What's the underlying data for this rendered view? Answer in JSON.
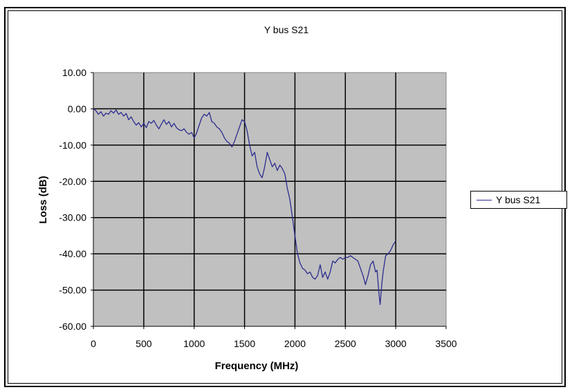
{
  "chart_data": {
    "type": "line",
    "title": "Y bus S21",
    "xlabel": "Frequency (MHz)",
    "ylabel": "Loss (dB)",
    "xlim": [
      0,
      3500
    ],
    "ylim": [
      -60,
      10
    ],
    "x_ticks": [
      "0",
      "500",
      "1000",
      "1500",
      "2000",
      "2500",
      "3000",
      "3500"
    ],
    "y_ticks": [
      "10.00",
      "0.00",
      "-10.00",
      "-20.00",
      "-30.00",
      "-40.00",
      "-50.00",
      "-60.00"
    ],
    "grid": true,
    "legend_position": "right",
    "plot_background": "#C0C0C0",
    "series": [
      {
        "name": "Y bus S21",
        "color": "#2B2B8F",
        "points": [
          [
            0,
            0.0
          ],
          [
            25,
            -0.5
          ],
          [
            50,
            -1.5
          ],
          [
            75,
            -0.8
          ],
          [
            100,
            -2.0
          ],
          [
            125,
            -1.2
          ],
          [
            150,
            -1.5
          ],
          [
            175,
            -0.5
          ],
          [
            200,
            -1.2
          ],
          [
            225,
            -0.3
          ],
          [
            250,
            -1.5
          ],
          [
            275,
            -1.0
          ],
          [
            300,
            -2.0
          ],
          [
            325,
            -1.3
          ],
          [
            350,
            -3.0
          ],
          [
            375,
            -2.2
          ],
          [
            400,
            -3.5
          ],
          [
            425,
            -4.5
          ],
          [
            450,
            -3.8
          ],
          [
            475,
            -5.0
          ],
          [
            500,
            -4.0
          ],
          [
            525,
            -5.2
          ],
          [
            550,
            -3.5
          ],
          [
            575,
            -4.0
          ],
          [
            600,
            -3.2
          ],
          [
            625,
            -4.5
          ],
          [
            650,
            -5.5
          ],
          [
            675,
            -4.2
          ],
          [
            700,
            -3.0
          ],
          [
            725,
            -4.3
          ],
          [
            750,
            -3.5
          ],
          [
            775,
            -5.0
          ],
          [
            800,
            -4.0
          ],
          [
            825,
            -5.2
          ],
          [
            850,
            -5.8
          ],
          [
            875,
            -6.0
          ],
          [
            900,
            -5.5
          ],
          [
            925,
            -6.5
          ],
          [
            950,
            -7.0
          ],
          [
            975,
            -6.5
          ],
          [
            1000,
            -8.0
          ],
          [
            1020,
            -7.0
          ],
          [
            1050,
            -4.5
          ],
          [
            1075,
            -2.5
          ],
          [
            1100,
            -1.5
          ],
          [
            1125,
            -2.0
          ],
          [
            1150,
            -1.0
          ],
          [
            1175,
            -3.5
          ],
          [
            1200,
            -4.0
          ],
          [
            1225,
            -5.0
          ],
          [
            1250,
            -5.5
          ],
          [
            1275,
            -6.5
          ],
          [
            1300,
            -8.0
          ],
          [
            1325,
            -9.0
          ],
          [
            1350,
            -9.5
          ],
          [
            1375,
            -10.5
          ],
          [
            1400,
            -9.0
          ],
          [
            1425,
            -7.0
          ],
          [
            1450,
            -5.0
          ],
          [
            1475,
            -3.0
          ],
          [
            1500,
            -3.5
          ],
          [
            1525,
            -6.0
          ],
          [
            1550,
            -10.0
          ],
          [
            1575,
            -13.0
          ],
          [
            1600,
            -12.0
          ],
          [
            1625,
            -16.0
          ],
          [
            1650,
            -18.0
          ],
          [
            1675,
            -19.0
          ],
          [
            1700,
            -16.0
          ],
          [
            1725,
            -12.0
          ],
          [
            1750,
            -14.0
          ],
          [
            1775,
            -16.0
          ],
          [
            1800,
            -15.0
          ],
          [
            1825,
            -17.0
          ],
          [
            1850,
            -15.5
          ],
          [
            1875,
            -16.5
          ],
          [
            1900,
            -18.0
          ],
          [
            1925,
            -22.0
          ],
          [
            1950,
            -25.0
          ],
          [
            1975,
            -30.0
          ],
          [
            2000,
            -35.0
          ],
          [
            2025,
            -40.0
          ],
          [
            2050,
            -42.5
          ],
          [
            2075,
            -44.0
          ],
          [
            2100,
            -44.5
          ],
          [
            2125,
            -45.5
          ],
          [
            2150,
            -45.0
          ],
          [
            2175,
            -46.5
          ],
          [
            2200,
            -47.0
          ],
          [
            2225,
            -46.0
          ],
          [
            2250,
            -43.0
          ],
          [
            2275,
            -46.5
          ],
          [
            2300,
            -45.0
          ],
          [
            2325,
            -47.0
          ],
          [
            2350,
            -45.0
          ],
          [
            2375,
            -42.0
          ],
          [
            2400,
            -42.5
          ],
          [
            2425,
            -41.5
          ],
          [
            2450,
            -41.0
          ],
          [
            2475,
            -41.5
          ],
          [
            2500,
            -41.0
          ],
          [
            2525,
            -41.0
          ],
          [
            2550,
            -40.5
          ],
          [
            2575,
            -41.0
          ],
          [
            2600,
            -41.5
          ],
          [
            2625,
            -42.0
          ],
          [
            2650,
            -44.0
          ],
          [
            2675,
            -46.0
          ],
          [
            2700,
            -48.5
          ],
          [
            2725,
            -46.0
          ],
          [
            2750,
            -43.0
          ],
          [
            2775,
            -42.0
          ],
          [
            2800,
            -45.0
          ],
          [
            2815,
            -44.5
          ],
          [
            2830,
            -50.0
          ],
          [
            2845,
            -54.0
          ],
          [
            2860,
            -49.0
          ],
          [
            2875,
            -45.0
          ],
          [
            2900,
            -40.5
          ],
          [
            2925,
            -40.0
          ],
          [
            2950,
            -39.0
          ],
          [
            2975,
            -37.5
          ],
          [
            3000,
            -36.5
          ]
        ]
      }
    ]
  }
}
